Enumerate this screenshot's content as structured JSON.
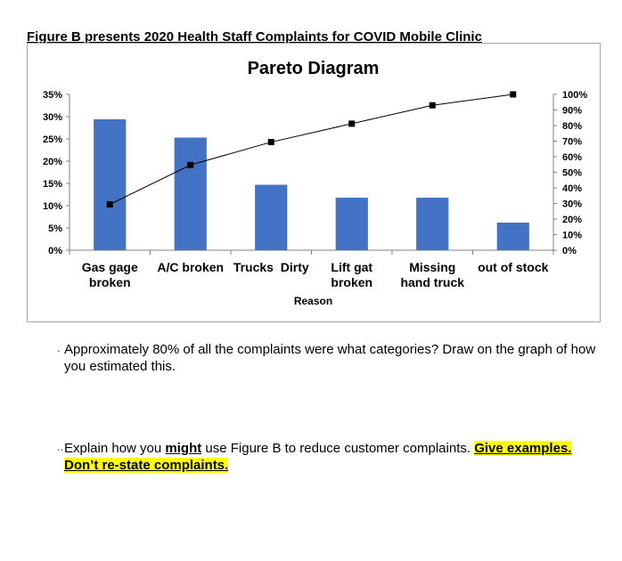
{
  "figure_heading": "Figure B presents 2020 Health Staff Complaints for COVID Mobile Clinic",
  "chart_data": {
    "type": "bar",
    "title": "Pareto Diagram",
    "xlabel": "Reason",
    "ylabel": "",
    "categories": [
      [
        "Gas gage",
        "broken"
      ],
      [
        "A/C broken"
      ],
      [
        "Trucks  Dirty"
      ],
      [
        "Lift gat",
        "broken"
      ],
      [
        "Missing",
        "hand truck"
      ],
      [
        "out of stock"
      ]
    ],
    "series": [
      {
        "values": [
          0.294,
          0.253,
          0.147,
          0.118,
          0.118,
          0.062
        ],
        "axis": "left",
        "kind": "bar",
        "color": "#4472c4"
      },
      {
        "values": [
          0.294,
          0.547,
          0.694,
          0.812,
          0.93,
          1.0
        ],
        "axis": "right",
        "kind": "line",
        "color": "#000000"
      }
    ],
    "ylim": [
      0,
      0.35
    ],
    "y2lim": [
      0,
      1.0
    ],
    "y_ticks": [
      "0%",
      "5%",
      "10%",
      "15%",
      "20%",
      "25%",
      "30%",
      "35%"
    ],
    "y2_ticks": [
      "0%",
      "10%",
      "20%",
      "30%",
      "40%",
      "50%",
      "60%",
      "70%",
      "80%",
      "90%",
      "100%"
    ],
    "grid": false,
    "legend": "none"
  },
  "questions": {
    "q1": "Approximately 80% of all the complaints were what categories? Draw on the graph of how you estimated this.",
    "q2_part1": "Explain how you ",
    "q2_might": "might",
    "q2_part2": " use Figure B to reduce customer complaints. ",
    "q2_highlight1": "Give examples.",
    "q2_highlight2": "Don’t re-state complaints."
  }
}
